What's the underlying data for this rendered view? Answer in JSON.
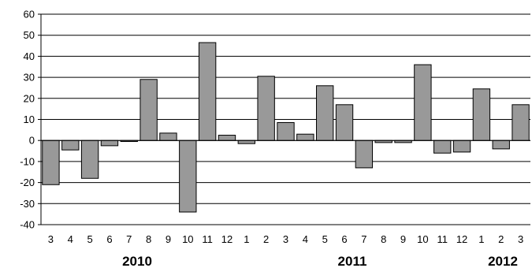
{
  "chart_data": {
    "type": "bar",
    "categories": [
      "3",
      "4",
      "5",
      "6",
      "7",
      "8",
      "9",
      "10",
      "11",
      "12",
      "1",
      "2",
      "3",
      "4",
      "5",
      "6",
      "7",
      "8",
      "9",
      "10",
      "11",
      "12",
      "1",
      "2",
      "3"
    ],
    "values": [
      -21,
      -4.5,
      -18,
      -2.5,
      -0.5,
      29,
      3.5,
      -34,
      46.5,
      2.5,
      -1.5,
      30.5,
      8.5,
      3,
      26,
      17,
      -13,
      -1,
      -1,
      36,
      -6,
      -5.5,
      24.5,
      -4,
      17
    ],
    "year_labels": [
      "2010",
      "2011",
      "2012"
    ],
    "ylim": [
      -40,
      60
    ],
    "yticks": [
      "60",
      "50",
      "40",
      "30",
      "20",
      "10",
      "0",
      "-10",
      "-20",
      "-30",
      "-40"
    ],
    "grid": true,
    "bar_color": "#999999",
    "title": "",
    "xlabel": "",
    "ylabel": ""
  }
}
